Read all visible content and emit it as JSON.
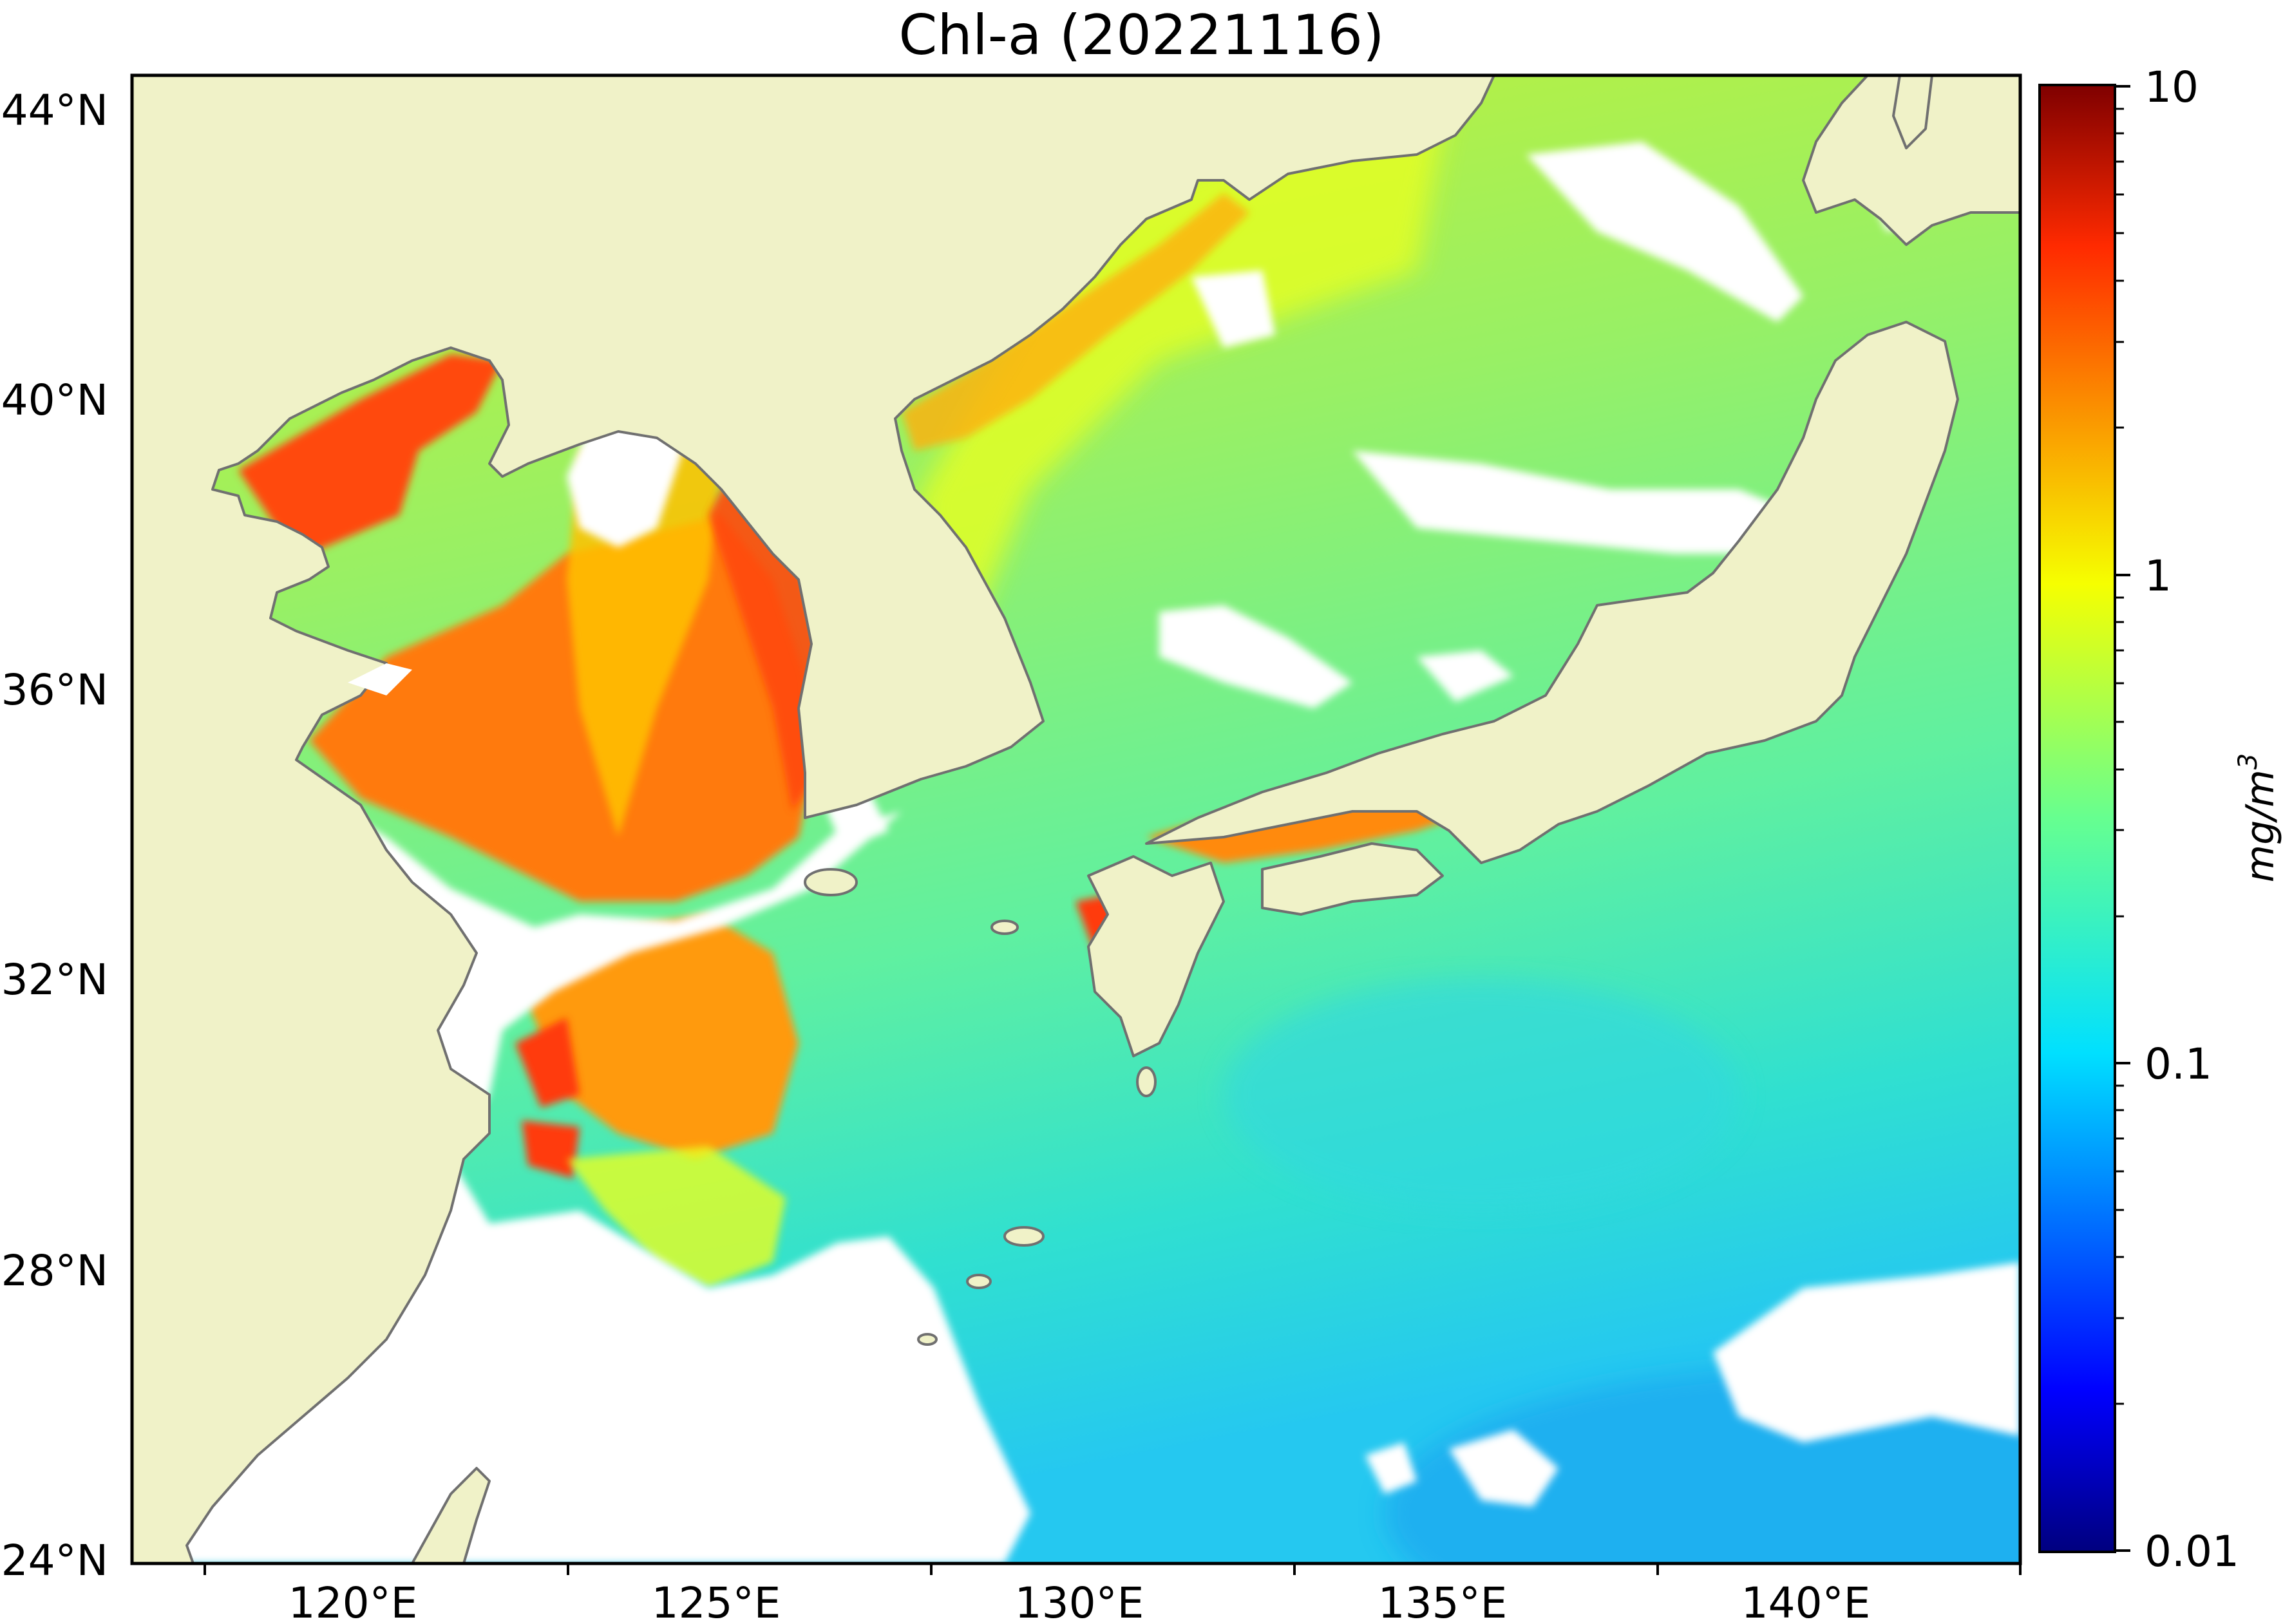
{
  "title": "Chl-a (20221116)",
  "map": {
    "lon_range": [
      117,
      143
    ],
    "lat_range": [
      24,
      44.5
    ],
    "lon_ticks": [
      "120°E",
      "125°E",
      "130°E",
      "135°E",
      "140°E"
    ],
    "lat_ticks": [
      "44°N",
      "40°N",
      "36°N",
      "32°N",
      "28°N",
      "24°N"
    ],
    "land_color": "#f0f2c8",
    "coastline_color": "#707070",
    "missing_color": "#ffffff"
  },
  "colorbar": {
    "ticks": [
      "10",
      "1",
      "0.1",
      "0.01"
    ],
    "label": "mg/m",
    "label_superscript": "3",
    "scale": "log",
    "range": [
      0.01,
      10
    ],
    "colormap": "jet"
  }
}
